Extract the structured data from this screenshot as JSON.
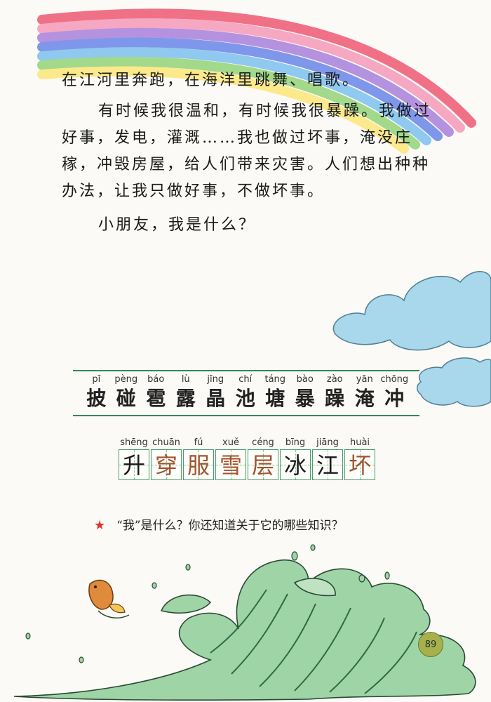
{
  "passage": {
    "line_1": "在江河里奔跑，在海洋里跳舞、唱歌。",
    "para_2": "有时候我很温和，有时候我很暴躁。我做过好事，发电，灌溉……我也做过坏事，淹没庄稼，冲毁房屋，给人们带来灾害。人们想出种种办法，让我只做好事，不做坏事。",
    "para_3": "小朋友，我是什么？"
  },
  "vocab_row_1": [
    {
      "pinyin": "pī",
      "char": "披"
    },
    {
      "pinyin": "pèng",
      "char": "碰"
    },
    {
      "pinyin": "báo",
      "char": "雹"
    },
    {
      "pinyin": "lù",
      "char": "露"
    },
    {
      "pinyin": "jīng",
      "char": "晶"
    },
    {
      "pinyin": "chí",
      "char": "池"
    },
    {
      "pinyin": "táng",
      "char": "塘"
    },
    {
      "pinyin": "bào",
      "char": "暴"
    },
    {
      "pinyin": "zào",
      "char": "躁"
    },
    {
      "pinyin": "yān",
      "char": "淹"
    },
    {
      "pinyin": "chōng",
      "char": "冲"
    }
  ],
  "vocab_row_2": [
    {
      "pinyin": "shēng",
      "char": "升",
      "color": "#1a1a1a"
    },
    {
      "pinyin": "chuān",
      "char": "穿",
      "color": "#a0522d"
    },
    {
      "pinyin": "fú",
      "char": "服",
      "color": "#a0522d"
    },
    {
      "pinyin": "xuě",
      "char": "雪",
      "color": "#a0522d"
    },
    {
      "pinyin": "céng",
      "char": "层",
      "color": "#a0522d"
    },
    {
      "pinyin": "bīng",
      "char": "冰",
      "color": "#1a1a1a"
    },
    {
      "pinyin": "jiāng",
      "char": "江",
      "color": "#1a1a1a"
    },
    {
      "pinyin": "huài",
      "char": "坏",
      "color": "#a0522d"
    }
  ],
  "question": {
    "star_icon": "star-icon",
    "text": "“我”是什么？你还知道关于它的哪些知识？"
  },
  "page_number": "89",
  "colors": {
    "rule_green": "#2f8a5a",
    "star_red": "#e2312c",
    "brown_char": "#a0522d",
    "cloud_blue": "#a9d8ec",
    "wave_green": "#9fd4a6"
  }
}
